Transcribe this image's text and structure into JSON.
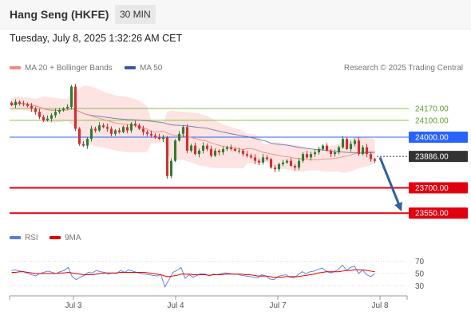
{
  "header": {
    "title": "Hang Seng (HKFE)",
    "timeframe": "30 MIN"
  },
  "datetime": "Tuesday, July 8, 2025 1:32:26 AM CET",
  "legend": {
    "ma20": "MA 20 + Bollinger Bands",
    "ma50": "MA 50",
    "credit": "Research © 2025 Trading Central",
    "rsi": "RSI",
    "rsi9": "9MA"
  },
  "colors": {
    "up": "#2e7d32",
    "down": "#d32f2f",
    "ma20": "#f28b82",
    "bollinger": "#fde3e1",
    "ma50": "#3d5a99",
    "resistance_green": "#8bc34a",
    "resistance_blue": "#2962ff",
    "support_red": "#e0000f",
    "arrow": "#2f5fa8",
    "rsi": "#5b7bd5",
    "rsi9": "#e00000"
  },
  "chart_data": {
    "type": "candlestick",
    "y_range": [
      23480,
      24350
    ],
    "x_labels": [
      "Jul 3",
      "Jul 4",
      "Jul 7",
      "Jul 8"
    ],
    "levels": [
      {
        "value": 24170,
        "label": "24170.00",
        "kind": "resistance"
      },
      {
        "value": 24100,
        "label": "24100.00",
        "kind": "resistance"
      },
      {
        "value": 24000,
        "label": "24000.00",
        "kind": "resistance-strong"
      },
      {
        "value": 23886,
        "label": "23886.00",
        "kind": "current"
      },
      {
        "value": 23700,
        "label": "23700.00",
        "kind": "support"
      },
      {
        "value": 23550,
        "label": "23550.00",
        "kind": "support"
      }
    ],
    "close": [
      24190,
      24210,
      24200,
      24195,
      24185,
      24170,
      24150,
      24120,
      24100,
      24110,
      24130,
      24150,
      24160,
      24170,
      24180,
      24300,
      24050,
      23960,
      23950,
      23990,
      24050,
      24040,
      24070,
      24060,
      24050,
      24020,
      24040,
      24030,
      24060,
      24040,
      24080,
      24070,
      24050,
      24030,
      24020,
      24010,
      24000,
      23990,
      24000,
      23770,
      23860,
      23980,
      24020,
      24060,
      23920,
      23950,
      23900,
      23920,
      23950,
      23930,
      23890,
      23920,
      23910,
      23930,
      23940,
      23930,
      23920,
      23920,
      23900,
      23890,
      23880,
      23860,
      23850,
      23880,
      23870,
      23820,
      23810,
      23840,
      23850,
      23860,
      23830,
      23820,
      23860,
      23900,
      23880,
      23900,
      23910,
      23930,
      23950,
      23920,
      23900,
      23910,
      23940,
      23990,
      23930,
      23960,
      23980,
      23900,
      23940,
      23900,
      23870,
      23860
    ],
    "rsi": {
      "ticks": [
        "70",
        "50",
        "30"
      ],
      "range": [
        20,
        80
      ],
      "values": [
        55,
        56,
        54,
        53,
        50,
        48,
        46,
        50,
        52,
        54,
        52,
        50,
        53,
        55,
        60,
        45,
        40,
        44,
        47,
        52,
        51,
        55,
        53,
        52,
        49,
        51,
        50,
        55,
        52,
        56,
        54,
        52,
        50,
        49,
        48,
        47,
        46,
        48,
        28,
        40,
        52,
        55,
        60,
        42,
        48,
        44,
        47,
        50,
        49,
        46,
        49,
        48,
        50,
        51,
        50,
        49,
        49,
        47,
        46,
        45,
        44,
        43,
        48,
        46,
        41,
        40,
        45,
        47,
        48,
        44,
        43,
        48,
        53,
        50,
        53,
        54,
        57,
        59,
        54,
        51,
        53,
        57,
        64,
        55,
        60,
        62,
        50,
        56,
        48,
        45,
        50
      ],
      "ma": [
        52,
        52,
        53,
        53,
        52,
        51,
        50,
        50,
        50,
        50,
        50,
        50,
        51,
        51,
        52,
        51,
        50,
        49,
        48,
        48,
        48,
        49,
        50,
        51,
        51,
        51,
        51,
        52,
        52,
        52,
        52,
        52,
        52,
        52,
        51,
        50,
        49,
        48,
        46,
        45,
        46,
        47,
        49,
        49,
        49,
        48,
        48,
        48,
        48,
        47,
        48,
        48,
        48,
        49,
        49,
        49,
        49,
        49,
        48,
        48,
        47,
        46,
        46,
        46,
        45,
        44,
        44,
        44,
        45,
        45,
        45,
        45,
        46,
        47,
        48,
        49,
        51,
        52,
        53,
        53,
        53,
        53,
        54,
        55,
        55,
        56,
        56,
        56,
        55,
        54,
        53
      ]
    }
  }
}
